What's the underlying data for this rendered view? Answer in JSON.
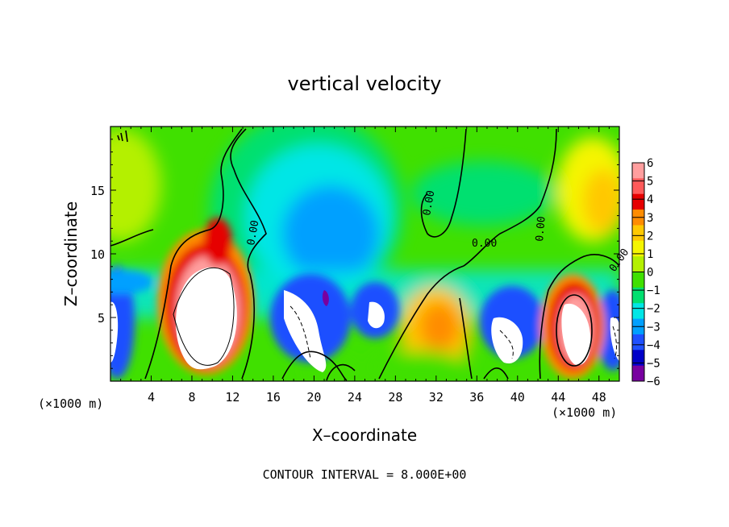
{
  "chart_data": {
    "type": "heatmap",
    "title": "vertical velocity",
    "xlabel": "X–coordinate",
    "ylabel": "Z–coordinate",
    "x_unit": "(×1000 m)",
    "z_unit": "(×1000 m)",
    "xlim": [
      0,
      50
    ],
    "ylim": [
      0,
      20
    ],
    "x_ticks": [
      4,
      8,
      12,
      16,
      20,
      24,
      28,
      32,
      36,
      40,
      44,
      48
    ],
    "y_ticks": [
      5,
      10,
      15
    ],
    "colorbar": {
      "levels": [
        6,
        5,
        4,
        3,
        2,
        1,
        0,
        -1,
        -2,
        -3,
        -4,
        -5,
        -6
      ],
      "colors": [
        "#ff9e9e",
        "#ff5a5a",
        "#e60000",
        "#ff8c00",
        "#ffc800",
        "#f5f500",
        "#b4f000",
        "#40e000",
        "#00e070",
        "#00e6e6",
        "#00a0ff",
        "#1e50ff",
        "#0000c8",
        "#7800a0"
      ]
    },
    "contour_labels": [
      "0.00",
      "0.00",
      "0.00",
      "0.00",
      "0.00"
    ],
    "footer": "CONTOUR INTERVAL = 8.000E+00"
  }
}
